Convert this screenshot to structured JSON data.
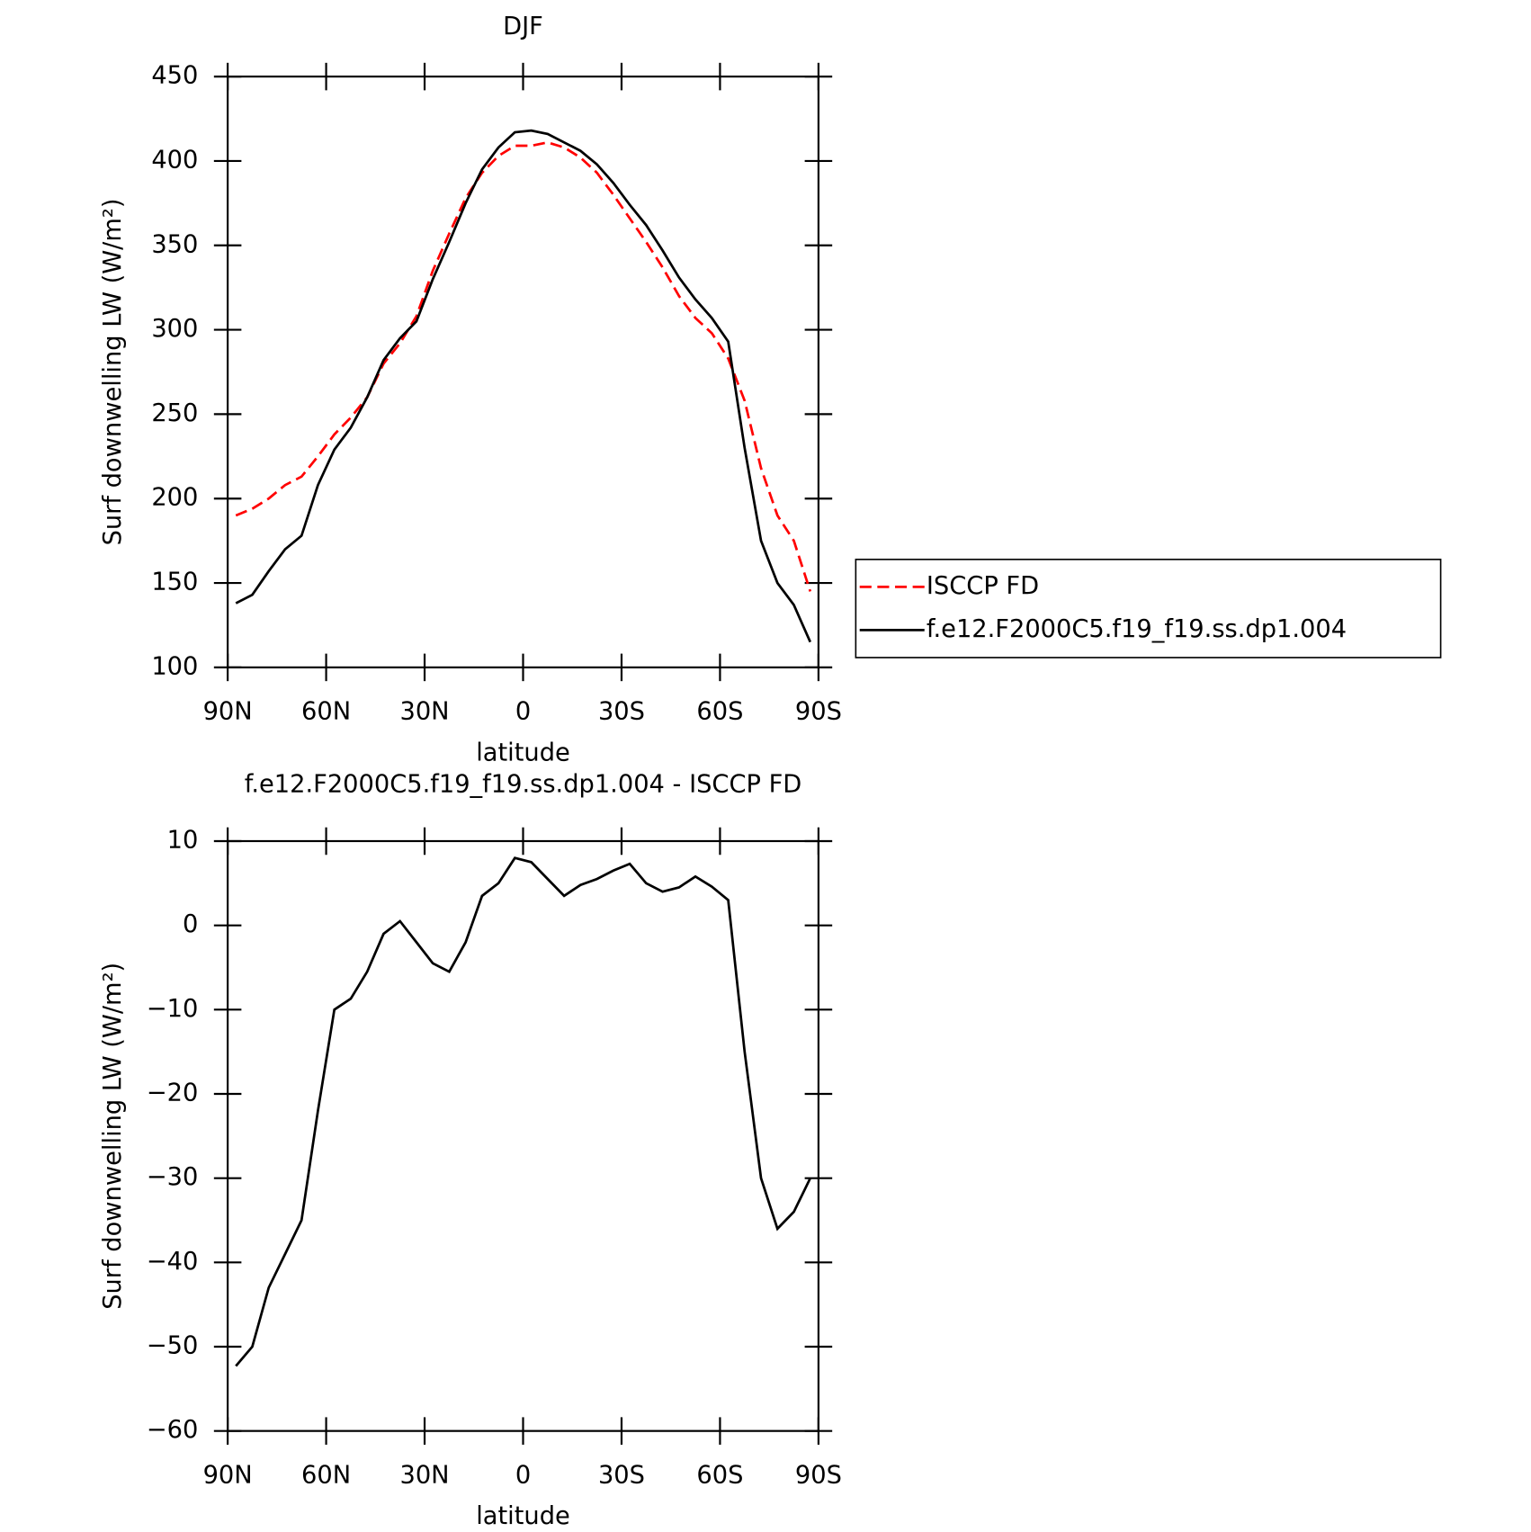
{
  "chart_data": [
    {
      "type": "line",
      "title": "DJF",
      "xlabel": "latitude",
      "ylabel": "Surf downwelling LW (W/m²)",
      "x": [
        87.5,
        82.5,
        77.5,
        72.5,
        67.5,
        62.5,
        57.5,
        52.5,
        47.5,
        42.5,
        37.5,
        32.5,
        27.5,
        22.5,
        17.5,
        12.5,
        7.5,
        2.5,
        -2.5,
        -7.5,
        -12.5,
        -17.5,
        -22.5,
        -27.5,
        -32.5,
        -37.5,
        -42.5,
        -47.5,
        -52.5,
        -57.5,
        -62.5,
        -67.5,
        -72.5,
        -77.5,
        -82.5,
        -87.5
      ],
      "series": [
        {
          "name": "ISCCP FD",
          "color": "#ff0000",
          "linestyle": "dashed",
          "values": [
            190,
            194,
            200,
            208,
            213,
            225,
            238,
            248,
            260,
            280,
            292,
            308,
            335,
            357,
            378,
            393,
            403,
            409,
            409,
            411,
            408,
            402,
            393,
            380,
            366,
            352,
            337,
            320,
            307,
            298,
            283,
            258,
            218,
            190,
            175,
            145
          ]
        },
        {
          "name": "f.e12.F2000C5.f19_f19.ss.dp1.004",
          "color": "#000000",
          "linestyle": "solid",
          "values": [
            138,
            143,
            157,
            170,
            178,
            208,
            229,
            242,
            260,
            282,
            295,
            305,
            330,
            352,
            375,
            395,
            408,
            417,
            418,
            416,
            411,
            406,
            398,
            387,
            374,
            362,
            347,
            331,
            318,
            307,
            293,
            230,
            175,
            150,
            137,
            115
          ]
        }
      ],
      "xlim": [
        90,
        -90
      ],
      "xticks": [
        {
          "value": 90,
          "label": "90N"
        },
        {
          "value": 60,
          "label": "60N"
        },
        {
          "value": 30,
          "label": "30N"
        },
        0,
        {
          "value": -30,
          "label": "30S"
        },
        {
          "value": -60,
          "label": "60S"
        },
        {
          "value": -90,
          "label": "90S"
        }
      ],
      "ylim": [
        100,
        450
      ],
      "yticks": [
        100,
        150,
        200,
        250,
        300,
        350,
        400,
        450
      ],
      "legend": "right"
    },
    {
      "type": "line",
      "title": "f.e12.F2000C5.f19_f19.ss.dp1.004 - ISCCP FD",
      "xlabel": "latitude",
      "ylabel": "Surf downwelling LW (W/m²)",
      "x": [
        87.5,
        82.5,
        77.5,
        72.5,
        67.5,
        62.5,
        57.5,
        52.5,
        47.5,
        42.5,
        37.5,
        32.5,
        27.5,
        22.5,
        17.5,
        12.5,
        7.5,
        2.5,
        -2.5,
        -7.5,
        -12.5,
        -17.5,
        -22.5,
        -27.5,
        -32.5,
        -37.5,
        -42.5,
        -47.5,
        -52.5,
        -57.5,
        -62.5,
        -67.5,
        -72.5,
        -77.5,
        -82.5,
        -87.5
      ],
      "series": [
        {
          "color": "#000000",
          "linestyle": "solid",
          "values": [
            -52.3,
            -50,
            -43,
            -39,
            -35,
            -22,
            -10,
            -8.7,
            -5.5,
            -1,
            0.5,
            -2,
            -4.5,
            -5.5,
            -2,
            3.5,
            5,
            8,
            7.5,
            5.5,
            3.5,
            4.8,
            5.5,
            6.5,
            7.3,
            5,
            4,
            4.5,
            5.8,
            4.6,
            3,
            -15,
            -30,
            -36,
            -34,
            -30
          ]
        }
      ],
      "xlim": [
        90,
        -90
      ],
      "xticks": [
        {
          "value": 90,
          "label": "90N"
        },
        {
          "value": 60,
          "label": "60N"
        },
        {
          "value": 30,
          "label": "30N"
        },
        0,
        {
          "value": -30,
          "label": "30S"
        },
        {
          "value": -60,
          "label": "60S"
        },
        {
          "value": -90,
          "label": "90S"
        }
      ],
      "ylim": [
        -60,
        10
      ],
      "yticks": [
        {
          "value": -60,
          "label": "−60"
        },
        {
          "value": -50,
          "label": "−50"
        },
        {
          "value": -40,
          "label": "−40"
        },
        {
          "value": -30,
          "label": "−30"
        },
        {
          "value": -20,
          "label": "−20"
        },
        {
          "value": -10,
          "label": "−10"
        },
        0,
        10
      ]
    }
  ]
}
